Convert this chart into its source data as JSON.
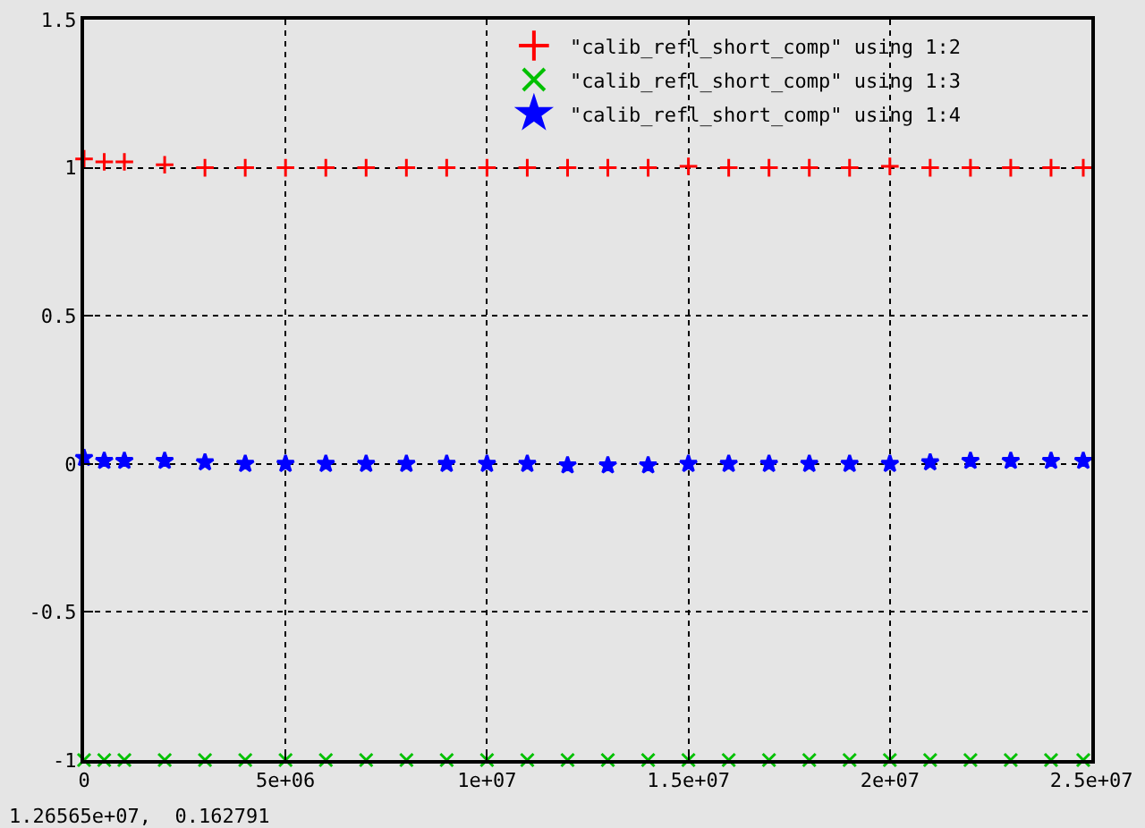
{
  "chart_data": {
    "type": "scatter",
    "x": [
      0,
      500000,
      1000000,
      2000000,
      3000000,
      4000000,
      5000000,
      6000000,
      7000000,
      8000000,
      9000000,
      10000000,
      11000000,
      12000000,
      13000000,
      14000000,
      15000000,
      16000000,
      17000000,
      18000000,
      19000000,
      20000000,
      21000000,
      22000000,
      23000000,
      24000000,
      24800000
    ],
    "series": [
      {
        "name": "\"calib_refl_short_comp\" using 1:2",
        "color": "#ff0000",
        "marker": "cross",
        "values": [
          1.03,
          1.02,
          1.02,
          1.01,
          1.0,
          1.0,
          1.0,
          1.0,
          1.0,
          1.0,
          1.0,
          1.0,
          1.0,
          1.0,
          1.0,
          1.0,
          1.005,
          1.0,
          1.0,
          1.0,
          1.0,
          1.005,
          1.0,
          1.0,
          1.0,
          1.0,
          1.0
        ]
      },
      {
        "name": "\"calib_refl_short_comp\" using 1:3",
        "color": "#00c000",
        "marker": "x",
        "values": [
          -1,
          -1,
          -1,
          -1,
          -1,
          -1,
          -1,
          -1,
          -1,
          -1,
          -1,
          -1,
          -1,
          -1,
          -1,
          -1,
          -1,
          -1,
          -1,
          -1,
          -1,
          -1,
          -1,
          -1,
          -1,
          -1,
          -1
        ]
      },
      {
        "name": "\"calib_refl_short_comp\" using 1:4",
        "color": "#0000ff",
        "marker": "star",
        "values": [
          0.02,
          0.01,
          0.01,
          0.01,
          0.005,
          0.0,
          0.0,
          0.0,
          0.0,
          0.0,
          0.0,
          0.0,
          0.0,
          -0.005,
          -0.005,
          -0.005,
          0.0,
          0.0,
          0.0,
          0.0,
          0.0,
          0.0,
          0.005,
          0.01,
          0.01,
          0.01,
          0.01
        ]
      }
    ],
    "xlim": [
      0,
      25000000
    ],
    "xticks": [
      0,
      {
        "value": 5000000,
        "label": "5e+06"
      },
      {
        "value": 10000000,
        "label": "1e+07"
      },
      {
        "value": 15000000,
        "label": "1.5e+07"
      },
      {
        "value": 20000000,
        "label": "2e+07"
      },
      {
        "value": 25000000,
        "label": "2.5e+07"
      }
    ],
    "ylim": [
      -1,
      1.5
    ],
    "yticks": [
      -1,
      -0.5,
      0,
      0.5,
      1,
      1.5
    ],
    "grid": true,
    "legend": "top right",
    "annotations": [
      "1.26565e+07,  0.162791"
    ]
  }
}
